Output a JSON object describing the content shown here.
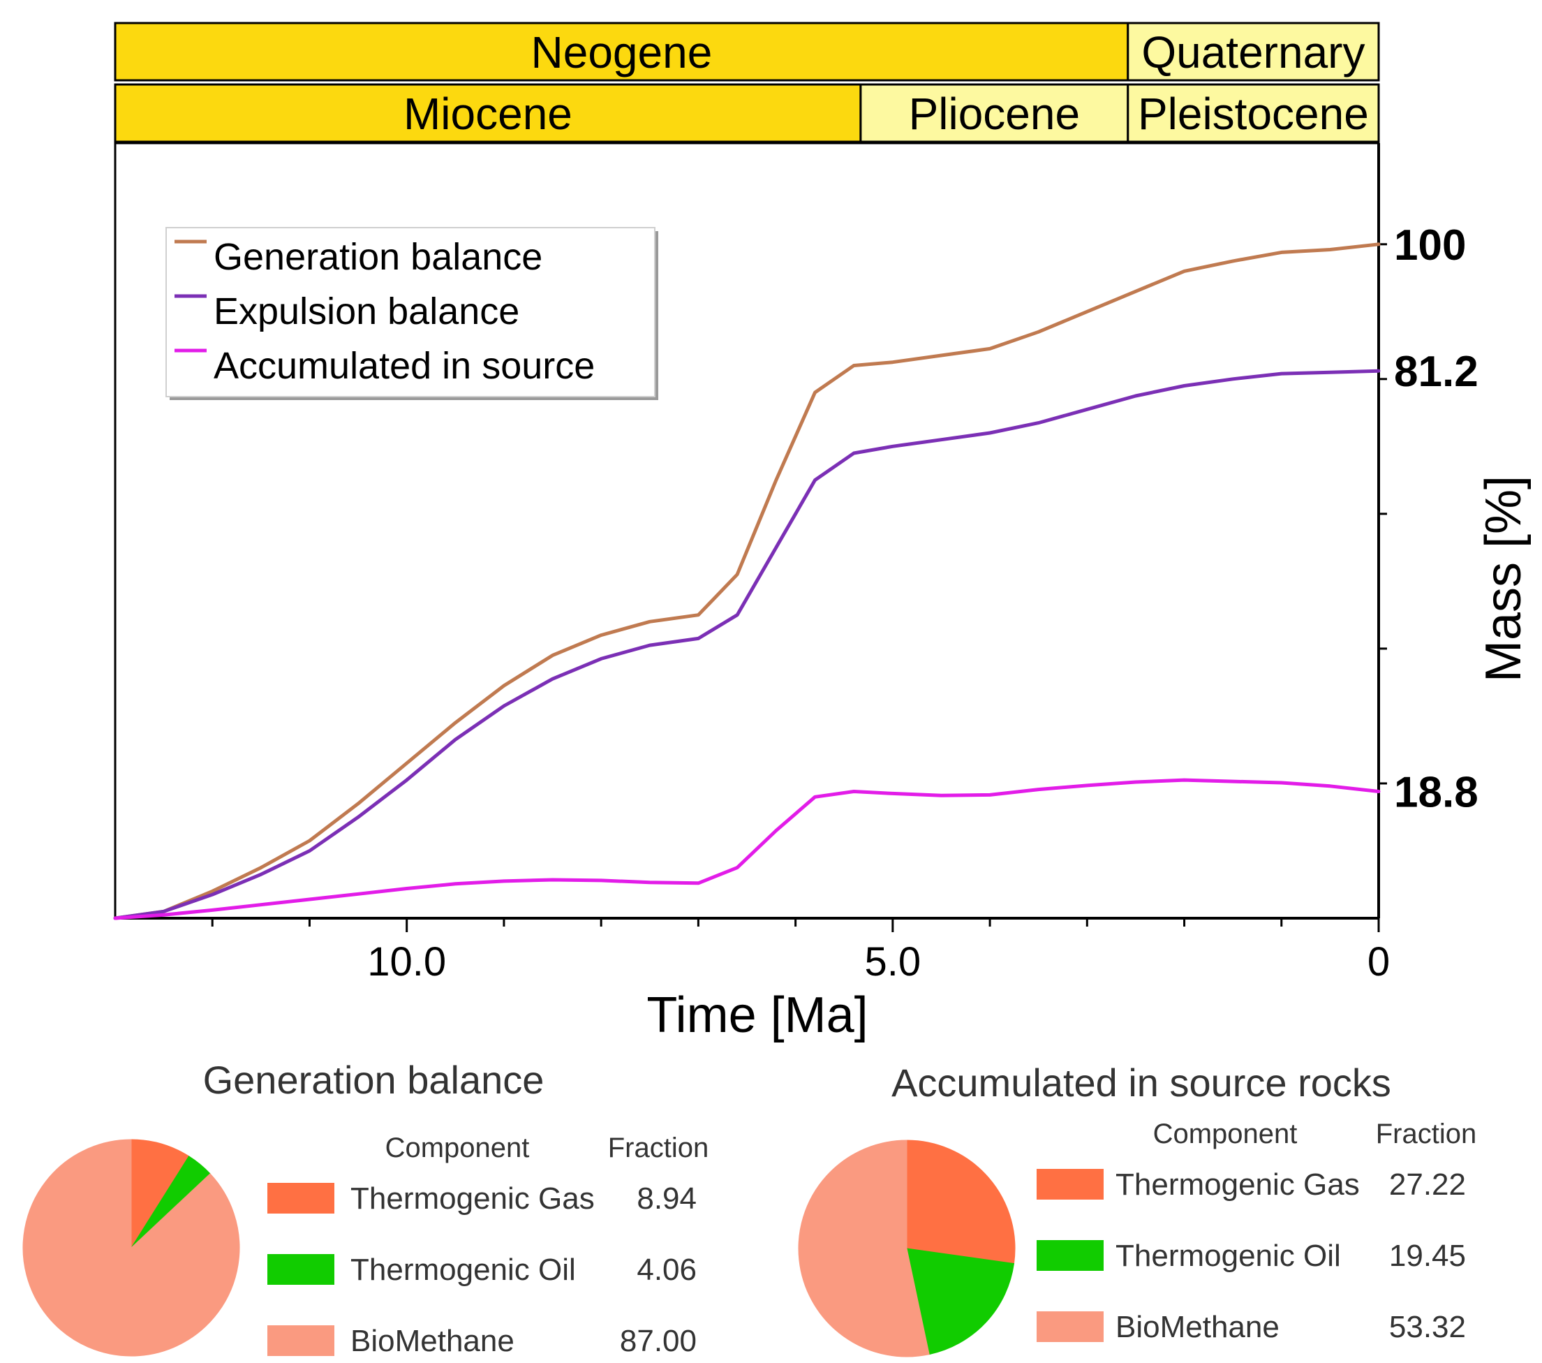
{
  "timescale": {
    "periods": [
      {
        "name": "Neogene",
        "start": 13.0,
        "end": 2.58,
        "color": "#fcd90f"
      },
      {
        "name": "Quaternary",
        "start": 2.58,
        "end": 0,
        "color": "#fdf9a0"
      }
    ],
    "epochs": [
      {
        "name": "Miocene",
        "start": 13.0,
        "end": 5.33,
        "color": "#fcd90f"
      },
      {
        "name": "Pliocene",
        "start": 5.33,
        "end": 2.58,
        "color": "#fdf9a0"
      },
      {
        "name": "Pleistocene",
        "start": 2.58,
        "end": 0,
        "color": "#fdf9a0"
      }
    ]
  },
  "chart_data": [
    {
      "type": "line",
      "title": "",
      "xlabel": "Time [Ma]",
      "ylabel": "Mass [%]",
      "xlim": [
        13.0,
        0
      ],
      "ylim": [
        0,
        115
      ],
      "x_ticks": [
        {
          "value": 10,
          "label": "10.0"
        },
        {
          "value": 5,
          "label": "5.0"
        },
        {
          "value": 0,
          "label": "0"
        }
      ],
      "x_minor_ticks": [
        12,
        11,
        9,
        8,
        7,
        6,
        4,
        3,
        2,
        1
      ],
      "y_minor_ticks": [
        20,
        40,
        60,
        80,
        100
      ],
      "end_labels": [
        {
          "value": 100,
          "label": "100"
        },
        {
          "value": 81.2,
          "label": "81.2"
        },
        {
          "value": 18.8,
          "label": "18.8"
        }
      ],
      "legend_position": "top-left",
      "series": [
        {
          "name": "Generation balance",
          "color": "#c07a50",
          "x": [
            13.0,
            12.5,
            12.0,
            11.5,
            11.0,
            10.5,
            10.0,
            9.5,
            9.0,
            8.5,
            8.0,
            7.5,
            7.0,
            6.6,
            6.2,
            5.8,
            5.4,
            5.0,
            4.5,
            4.0,
            3.5,
            3.0,
            2.5,
            2.0,
            1.5,
            1.0,
            0.5,
            0
          ],
          "values": [
            0,
            1,
            4,
            7.5,
            11.5,
            17,
            23,
            29,
            34.5,
            39,
            42,
            44,
            45,
            51,
            65,
            78,
            82,
            82.5,
            83.5,
            84.5,
            87,
            90,
            93,
            96,
            97.5,
            98.8,
            99.2,
            100
          ]
        },
        {
          "name": "Expulsion balance",
          "color": "#7b2fb5",
          "x": [
            13.0,
            12.5,
            12.0,
            11.5,
            11.0,
            10.5,
            10.0,
            9.5,
            9.0,
            8.5,
            8.0,
            7.5,
            7.0,
            6.6,
            6.2,
            5.8,
            5.4,
            5.0,
            4.5,
            4.0,
            3.5,
            3.0,
            2.5,
            2.0,
            1.5,
            1.0,
            0.5,
            0
          ],
          "values": [
            0,
            1,
            3.5,
            6.5,
            10,
            15,
            20.5,
            26.5,
            31.5,
            35.5,
            38.5,
            40.5,
            41.5,
            45,
            55,
            65,
            69,
            70,
            71,
            72,
            73.5,
            75.5,
            77.5,
            79,
            80,
            80.8,
            81,
            81.2
          ]
        },
        {
          "name": "Accumulated in source",
          "color": "#e21ce8",
          "x": [
            13.0,
            12.5,
            12.0,
            11.5,
            11.0,
            10.5,
            10.0,
            9.5,
            9.0,
            8.5,
            8.0,
            7.5,
            7.0,
            6.6,
            6.2,
            5.8,
            5.4,
            5.0,
            4.5,
            4.0,
            3.5,
            3.0,
            2.5,
            2.0,
            1.5,
            1.0,
            0.5,
            0
          ],
          "values": [
            0,
            0.5,
            1.2,
            2,
            2.8,
            3.6,
            4.4,
            5.1,
            5.5,
            5.7,
            5.6,
            5.3,
            5.2,
            7.5,
            13,
            18,
            18.8,
            18.5,
            18.2,
            18.3,
            19.1,
            19.7,
            20.2,
            20.5,
            20.3,
            20.1,
            19.6,
            18.8
          ]
        }
      ]
    },
    {
      "type": "pie",
      "title": "Generation balance",
      "table_headers": [
        "Component",
        "Fraction"
      ],
      "slices": [
        {
          "label": "Thermogenic Gas",
          "value": 8.94,
          "display": "8.94",
          "color": "#ff7043"
        },
        {
          "label": "Thermogenic Oil",
          "value": 4.06,
          "display": "4.06",
          "color": "#11cc00"
        },
        {
          "label": "BioMethane",
          "value": 87.0,
          "display": "87.00",
          "color": "#fa9a80"
        }
      ]
    },
    {
      "type": "pie",
      "title": "Accumulated in source rocks",
      "table_headers": [
        "Component",
        "Fraction"
      ],
      "slices": [
        {
          "label": "Thermogenic Gas",
          "value": 27.22,
          "display": "27.22",
          "color": "#ff7043"
        },
        {
          "label": "Thermogenic Oil",
          "value": 19.45,
          "display": "19.45",
          "color": "#11cc00"
        },
        {
          "label": "BioMethane",
          "value": 53.32,
          "display": "53.32",
          "color": "#fa9a80"
        }
      ]
    }
  ]
}
